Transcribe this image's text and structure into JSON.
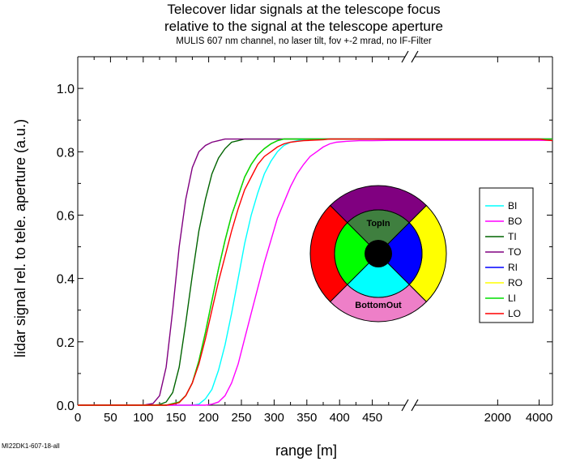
{
  "header": {
    "title_line1": "Telecover lidar signals at the telescope focus",
    "title_line2": "relative to the signal at the telescope aperture",
    "subtitle": "MULIS 607 nm channel, no laser tilt, fov +-2 mrad, no IF-Filter"
  },
  "footer": {
    "id_label": "MI22DK1-607-18-all"
  },
  "chart_data": {
    "type": "line",
    "xlabel": "range [m]",
    "ylabel": "lidar signal rel. to tele. aperture (a.u.)",
    "grid": false,
    "legend_position": "right",
    "x_axis": {
      "segment1": {
        "range": [
          0,
          500
        ],
        "ticks": [
          0,
          50,
          100,
          150,
          200,
          250,
          300,
          350,
          400,
          450
        ]
      },
      "segment2": {
        "range": [
          500,
          5000
        ],
        "scale": "log",
        "ticks": [
          2000,
          4000
        ]
      },
      "break_marks": true
    },
    "ylim": [
      0,
      1.1
    ],
    "yticks": [
      0.0,
      0.2,
      0.4,
      0.6,
      0.8,
      1.0
    ],
    "ytick_labels": [
      "0.0",
      "0.2",
      "0.4",
      "0.6",
      "0.8",
      "1.0"
    ],
    "x": [
      0,
      25,
      50,
      75,
      100,
      115,
      125,
      135,
      145,
      155,
      165,
      175,
      185,
      195,
      205,
      215,
      225,
      235,
      245,
      255,
      265,
      275,
      285,
      295,
      305,
      315,
      325,
      335,
      345,
      355,
      365,
      375,
      385,
      395,
      410,
      430,
      450,
      480,
      600,
      1000,
      2000,
      3000,
      4000,
      4500,
      5000
    ],
    "series": [
      {
        "name": "BI",
        "color": "#00ffff",
        "values": [
          0,
          0,
          0,
          0,
          0,
          0,
          0,
          0,
          0,
          0,
          0,
          0,
          0.003,
          0.02,
          0.05,
          0.11,
          0.19,
          0.29,
          0.4,
          0.51,
          0.6,
          0.67,
          0.73,
          0.77,
          0.8,
          0.82,
          0.83,
          0.835,
          0.838,
          0.84,
          0.84,
          0.84,
          0.84,
          0.84,
          0.84,
          0.84,
          0.84,
          0.84,
          0.84,
          0.84,
          0.84,
          0.84,
          0.84,
          0.84,
          0.84
        ]
      },
      {
        "name": "BO",
        "color": "#ff00ff",
        "values": [
          0,
          0,
          0,
          0,
          0,
          0,
          0,
          0,
          0,
          0,
          0,
          0,
          0,
          0,
          0.003,
          0.01,
          0.03,
          0.07,
          0.13,
          0.21,
          0.29,
          0.37,
          0.45,
          0.52,
          0.59,
          0.64,
          0.69,
          0.73,
          0.76,
          0.785,
          0.8,
          0.815,
          0.825,
          0.83,
          0.833,
          0.835,
          0.835,
          0.836,
          0.836,
          0.836,
          0.836,
          0.836,
          0.836,
          0.836,
          0.836
        ]
      },
      {
        "name": "TI",
        "color": "#006400",
        "values": [
          0,
          0,
          0,
          0,
          0,
          0,
          0.002,
          0.01,
          0.04,
          0.12,
          0.26,
          0.41,
          0.55,
          0.65,
          0.73,
          0.78,
          0.81,
          0.83,
          0.835,
          0.84,
          0.84,
          0.84,
          0.84,
          0.84,
          0.84,
          0.84,
          0.84,
          0.84,
          0.84,
          0.84,
          0.84,
          0.84,
          0.84,
          0.84,
          0.84,
          0.84,
          0.84,
          0.84,
          0.84,
          0.84,
          0.84,
          0.84,
          0.84,
          0.84,
          0.84
        ]
      },
      {
        "name": "TO",
        "color": "#800080",
        "values": [
          0,
          0,
          0,
          0,
          0,
          0.005,
          0.03,
          0.12,
          0.3,
          0.5,
          0.65,
          0.75,
          0.8,
          0.82,
          0.83,
          0.835,
          0.84,
          0.84,
          0.84,
          0.84,
          0.84,
          0.84,
          0.84,
          0.84,
          0.84,
          0.84,
          0.84,
          0.84,
          0.84,
          0.84,
          0.84,
          0.84,
          0.84,
          0.84,
          0.84,
          0.84,
          0.84,
          0.84,
          0.84,
          0.84,
          0.84,
          0.84,
          0.84,
          0.84,
          0.84
        ]
      },
      {
        "name": "RI",
        "color": "#0000ff",
        "values": [
          0,
          0,
          0,
          0,
          0,
          0,
          0,
          0,
          0.005,
          0.01,
          0.03,
          0.07,
          0.14,
          0.23,
          0.33,
          0.43,
          0.52,
          0.6,
          0.66,
          0.72,
          0.76,
          0.79,
          0.81,
          0.825,
          0.835,
          0.84,
          0.84,
          0.84,
          0.84,
          0.84,
          0.84,
          0.84,
          0.84,
          0.84,
          0.84,
          0.84,
          0.84,
          0.84,
          0.84,
          0.84,
          0.84,
          0.84,
          0.84,
          0.84,
          0.84
        ]
      },
      {
        "name": "RO",
        "color": "#ffff00",
        "values": [
          0,
          0,
          0,
          0,
          0,
          0,
          0,
          0,
          0.005,
          0.01,
          0.03,
          0.07,
          0.14,
          0.23,
          0.33,
          0.43,
          0.52,
          0.6,
          0.66,
          0.72,
          0.76,
          0.79,
          0.81,
          0.825,
          0.835,
          0.84,
          0.84,
          0.84,
          0.84,
          0.84,
          0.84,
          0.84,
          0.84,
          0.84,
          0.84,
          0.84,
          0.84,
          0.84,
          0.84,
          0.84,
          0.84,
          0.84,
          0.84,
          0.84,
          0.84
        ]
      },
      {
        "name": "LI",
        "color": "#00dd00",
        "values": [
          0,
          0,
          0,
          0,
          0,
          0,
          0,
          0,
          0.005,
          0.01,
          0.03,
          0.07,
          0.14,
          0.23,
          0.33,
          0.43,
          0.52,
          0.6,
          0.66,
          0.72,
          0.76,
          0.79,
          0.81,
          0.825,
          0.835,
          0.84,
          0.84,
          0.84,
          0.84,
          0.84,
          0.84,
          0.84,
          0.84,
          0.84,
          0.84,
          0.84,
          0.84,
          0.84,
          0.84,
          0.84,
          0.84,
          0.84,
          0.84,
          0.84,
          0.84
        ]
      },
      {
        "name": "LO",
        "color": "#ff0000",
        "values": [
          0,
          0,
          0,
          0,
          0,
          0,
          0,
          0,
          0.003,
          0.008,
          0.03,
          0.07,
          0.13,
          0.21,
          0.3,
          0.39,
          0.47,
          0.55,
          0.62,
          0.68,
          0.72,
          0.76,
          0.785,
          0.8,
          0.815,
          0.825,
          0.83,
          0.833,
          0.835,
          0.836,
          0.837,
          0.838,
          0.84,
          0.84,
          0.84,
          0.84,
          0.84,
          0.84,
          0.84,
          0.84,
          0.84,
          0.84,
          0.84,
          0.837,
          0.835
        ]
      }
    ],
    "inset_diagram": {
      "labels": {
        "top_inner": "TopIn",
        "bottom_outer": "BottomOut"
      },
      "colors": {
        "top_outer": "#800080",
        "bottom_outer": "#ee7fc8",
        "left_outer": "#ff0000",
        "right_outer": "#ffff00",
        "top_inner": "#3f7f3f",
        "bottom_inner": "#00ffff",
        "left_inner": "#00ff00",
        "right_inner": "#0000ff",
        "center": "#000000"
      }
    }
  }
}
